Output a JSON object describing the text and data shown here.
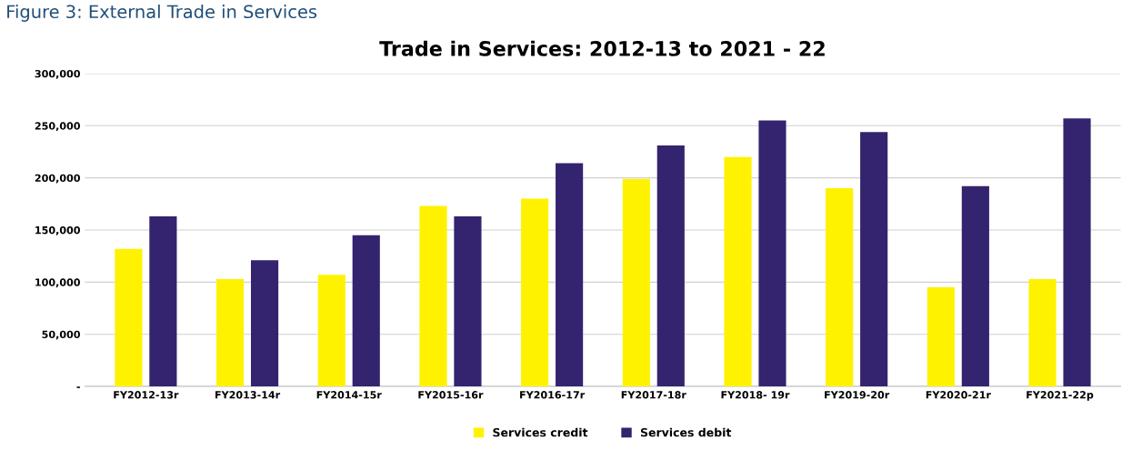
{
  "chart_data": {
    "type": "bar",
    "title": "Trade in Services: 2012-13 to 2021 - 22",
    "annotations": [
      "Figure 3: External Trade in Services"
    ],
    "categories": [
      "FY2012-13r",
      "FY2013-14r",
      "FY2014-15r",
      "FY2015-16r",
      "FY2016-17r",
      "FY2017-18r",
      "FY2018- 19r",
      "FY2019-20r",
      "FY2020-21r",
      "FY2021-22p"
    ],
    "series": [
      {
        "name": "Services credit",
        "color": "#fff200",
        "values": [
          132000,
          103000,
          107000,
          173000,
          180000,
          199000,
          220000,
          190000,
          95000,
          103000
        ]
      },
      {
        "name": "Services debit",
        "color": "#34236e",
        "values": [
          163000,
          121000,
          145000,
          163000,
          214000,
          231000,
          255000,
          244000,
          192000,
          257000
        ]
      }
    ],
    "ylim": [
      0,
      300000
    ],
    "yticks": [
      {
        "value": 0,
        "label": "-"
      },
      {
        "value": 50000,
        "label": "50,000"
      },
      {
        "value": 100000,
        "label": "100,000"
      },
      {
        "value": 150000,
        "label": "150,000"
      },
      {
        "value": 200000,
        "label": "200,000"
      },
      {
        "value": 250000,
        "label": "250,000"
      },
      {
        "value": 300000,
        "label": "300,000"
      }
    ],
    "grid": "y",
    "legend": "bottom"
  }
}
